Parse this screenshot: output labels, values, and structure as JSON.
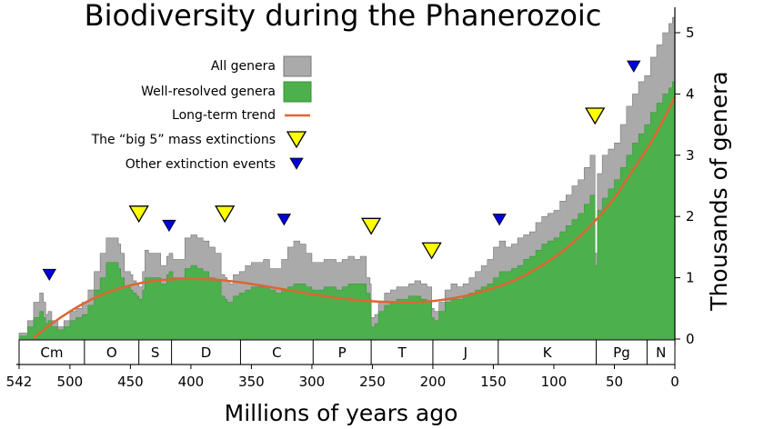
{
  "chart_data": {
    "type": "area",
    "title": "Biodiversity during the Phanerozoic",
    "xlabel": "Millions of years ago",
    "ylabel": "Thousands of genera",
    "xlim": [
      542,
      0
    ],
    "ylim": [
      0,
      5.5
    ],
    "x_ticks": [
      542,
      500,
      450,
      400,
      350,
      300,
      250,
      200,
      150,
      100,
      50,
      0
    ],
    "y_ticks": [
      0,
      1,
      2,
      3,
      4,
      5
    ],
    "colors": {
      "all_genera": "#aaaaaa",
      "well_resolved": "#4cb04c",
      "trend": "#dd6633",
      "big5": "#ffff00",
      "other": "#0000dd"
    },
    "legend": [
      {
        "key": "all",
        "label": "All genera"
      },
      {
        "key": "well",
        "label": "Well-resolved genera"
      },
      {
        "key": "trend",
        "label": "Long-term trend"
      },
      {
        "key": "big5",
        "label": "The “big 5” mass extinctions"
      },
      {
        "key": "other",
        "label": "Other extinction events"
      }
    ],
    "series": [
      {
        "name": "All genera",
        "x": [
          542,
          535,
          530,
          525,
          522,
          520,
          518,
          515,
          510,
          505,
          500,
          495,
          490,
          485,
          480,
          475,
          470,
          465,
          460,
          458,
          455,
          450,
          448,
          445,
          443,
          440,
          438,
          435,
          430,
          425,
          420,
          418,
          415,
          410,
          405,
          400,
          398,
          395,
          390,
          385,
          380,
          375,
          372,
          370,
          368,
          365,
          360,
          355,
          350,
          345,
          340,
          335,
          330,
          325,
          320,
          315,
          310,
          305,
          300,
          295,
          290,
          285,
          280,
          275,
          270,
          265,
          260,
          255,
          252,
          251,
          248,
          245,
          240,
          235,
          230,
          225,
          220,
          215,
          210,
          205,
          201,
          199,
          195,
          190,
          185,
          180,
          175,
          170,
          165,
          160,
          155,
          150,
          145,
          140,
          135,
          130,
          125,
          120,
          115,
          110,
          105,
          100,
          95,
          90,
          85,
          80,
          75,
          70,
          67,
          66,
          64,
          60,
          55,
          50,
          45,
          40,
          35,
          30,
          25,
          20,
          15,
          10,
          5,
          2,
          0
        ],
        "values": [
          0.1,
          0.3,
          0.6,
          0.75,
          0.6,
          0.4,
          0.45,
          0.3,
          0.2,
          0.3,
          0.45,
          0.5,
          0.6,
          0.8,
          1.1,
          1.4,
          1.65,
          1.65,
          1.55,
          1.4,
          1.1,
          1.05,
          0.95,
          0.9,
          0.85,
          1.1,
          1.45,
          1.4,
          1.4,
          1.2,
          1.35,
          1.4,
          1.3,
          1.3,
          1.65,
          1.7,
          1.7,
          1.65,
          1.6,
          1.5,
          1.4,
          1.05,
          1.0,
          0.95,
          0.9,
          1.05,
          1.1,
          1.2,
          1.25,
          1.25,
          1.3,
          1.15,
          1.15,
          1.3,
          1.5,
          1.6,
          1.55,
          1.4,
          1.25,
          1.25,
          1.3,
          1.3,
          1.25,
          1.3,
          1.35,
          1.3,
          1.35,
          1.0,
          0.9,
          0.35,
          0.4,
          0.6,
          0.75,
          0.8,
          0.85,
          0.85,
          0.9,
          0.95,
          0.9,
          0.85,
          0.5,
          0.45,
          0.6,
          0.8,
          0.9,
          0.85,
          0.9,
          1.0,
          1.1,
          1.2,
          1.3,
          1.5,
          1.6,
          1.5,
          1.55,
          1.65,
          1.7,
          1.75,
          1.9,
          2.0,
          2.05,
          2.1,
          2.25,
          2.35,
          2.5,
          2.6,
          2.8,
          3.0,
          3.0,
          1.4,
          2.7,
          3.0,
          3.1,
          3.2,
          3.5,
          3.8,
          4.0,
          4.2,
          4.3,
          4.6,
          4.8,
          5.0,
          5.15,
          5.25,
          5.3
        ]
      },
      {
        "name": "Well-resolved genera",
        "x": [
          542,
          535,
          530,
          525,
          522,
          520,
          518,
          515,
          510,
          505,
          500,
          495,
          490,
          485,
          480,
          475,
          470,
          465,
          460,
          458,
          455,
          450,
          448,
          445,
          443,
          440,
          438,
          435,
          430,
          425,
          420,
          418,
          415,
          410,
          405,
          400,
          398,
          395,
          390,
          385,
          380,
          375,
          372,
          370,
          368,
          365,
          360,
          355,
          350,
          345,
          340,
          335,
          330,
          325,
          320,
          315,
          310,
          305,
          300,
          295,
          290,
          285,
          280,
          275,
          270,
          265,
          260,
          255,
          252,
          251,
          248,
          245,
          240,
          235,
          230,
          225,
          220,
          215,
          210,
          205,
          201,
          199,
          195,
          190,
          185,
          180,
          175,
          170,
          165,
          160,
          155,
          150,
          145,
          140,
          135,
          130,
          125,
          120,
          115,
          110,
          105,
          100,
          95,
          90,
          85,
          80,
          75,
          70,
          67,
          66,
          64,
          60,
          55,
          50,
          45,
          40,
          35,
          30,
          25,
          20,
          15,
          10,
          5,
          2,
          0
        ],
        "values": [
          0.05,
          0.2,
          0.35,
          0.45,
          0.35,
          0.25,
          0.3,
          0.2,
          0.15,
          0.2,
          0.3,
          0.35,
          0.4,
          0.55,
          0.8,
          1.0,
          1.25,
          1.25,
          1.15,
          1.0,
          0.85,
          0.8,
          0.75,
          0.7,
          0.65,
          0.8,
          1.0,
          1.0,
          1.0,
          0.9,
          1.05,
          1.1,
          1.0,
          1.0,
          1.15,
          1.2,
          1.2,
          1.15,
          1.1,
          1.0,
          0.95,
          0.7,
          0.65,
          0.6,
          0.6,
          0.7,
          0.75,
          0.8,
          0.85,
          0.85,
          0.85,
          0.8,
          0.75,
          0.8,
          0.85,
          0.9,
          0.9,
          0.85,
          0.8,
          0.8,
          0.85,
          0.85,
          0.8,
          0.85,
          0.9,
          0.9,
          0.9,
          0.75,
          0.65,
          0.2,
          0.25,
          0.45,
          0.55,
          0.6,
          0.65,
          0.65,
          0.7,
          0.7,
          0.65,
          0.6,
          0.35,
          0.3,
          0.45,
          0.6,
          0.65,
          0.65,
          0.7,
          0.75,
          0.8,
          0.85,
          0.9,
          1.0,
          1.1,
          1.1,
          1.15,
          1.2,
          1.3,
          1.35,
          1.45,
          1.55,
          1.6,
          1.65,
          1.75,
          1.85,
          1.95,
          2.05,
          2.2,
          2.35,
          2.35,
          1.2,
          2.1,
          2.3,
          2.45,
          2.6,
          2.8,
          3.0,
          3.2,
          3.35,
          3.5,
          3.7,
          3.85,
          4.0,
          4.1,
          4.2,
          4.2
        ]
      },
      {
        "name": "Long-term trend",
        "x": [
          530,
          515,
          500,
          485,
          470,
          455,
          440,
          425,
          410,
          395,
          380,
          365,
          350,
          335,
          320,
          305,
          290,
          275,
          260,
          245,
          230,
          215,
          200,
          185,
          170,
          155,
          140,
          125,
          110,
          95,
          80,
          65,
          50,
          35,
          20,
          5,
          0
        ],
        "values": [
          0.02,
          0.25,
          0.45,
          0.62,
          0.75,
          0.85,
          0.92,
          0.96,
          0.98,
          0.98,
          0.97,
          0.94,
          0.9,
          0.85,
          0.8,
          0.75,
          0.7,
          0.66,
          0.63,
          0.61,
          0.6,
          0.6,
          0.62,
          0.66,
          0.72,
          0.8,
          0.9,
          1.03,
          1.2,
          1.4,
          1.65,
          1.95,
          2.3,
          2.75,
          3.2,
          3.75,
          3.95
        ]
      }
    ],
    "big5_extinctions": [
      {
        "ma": 443,
        "marker_y": 2.05
      },
      {
        "ma": 372,
        "marker_y": 2.05
      },
      {
        "ma": 251,
        "marker_y": 1.85
      },
      {
        "ma": 201,
        "marker_y": 1.45
      },
      {
        "ma": 66,
        "marker_y": 3.65
      }
    ],
    "other_extinctions": [
      {
        "ma": 517,
        "marker_y": 1.05
      },
      {
        "ma": 418,
        "marker_y": 1.85
      },
      {
        "ma": 323,
        "marker_y": 1.95
      },
      {
        "ma": 145,
        "marker_y": 1.95
      },
      {
        "ma": 34,
        "marker_y": 4.45
      }
    ],
    "periods": [
      {
        "label": "Cm",
        "start": 542,
        "end": 488
      },
      {
        "label": "O",
        "start": 488,
        "end": 443
      },
      {
        "label": "S",
        "start": 443,
        "end": 416
      },
      {
        "label": "D",
        "start": 416,
        "end": 359
      },
      {
        "label": "C",
        "start": 359,
        "end": 299
      },
      {
        "label": "P",
        "start": 299,
        "end": 251
      },
      {
        "label": "T",
        "start": 251,
        "end": 200
      },
      {
        "label": "J",
        "start": 200,
        "end": 146
      },
      {
        "label": "K",
        "start": 146,
        "end": 65
      },
      {
        "label": "Pg",
        "start": 65,
        "end": 23
      },
      {
        "label": "N",
        "start": 23,
        "end": 0
      }
    ]
  }
}
